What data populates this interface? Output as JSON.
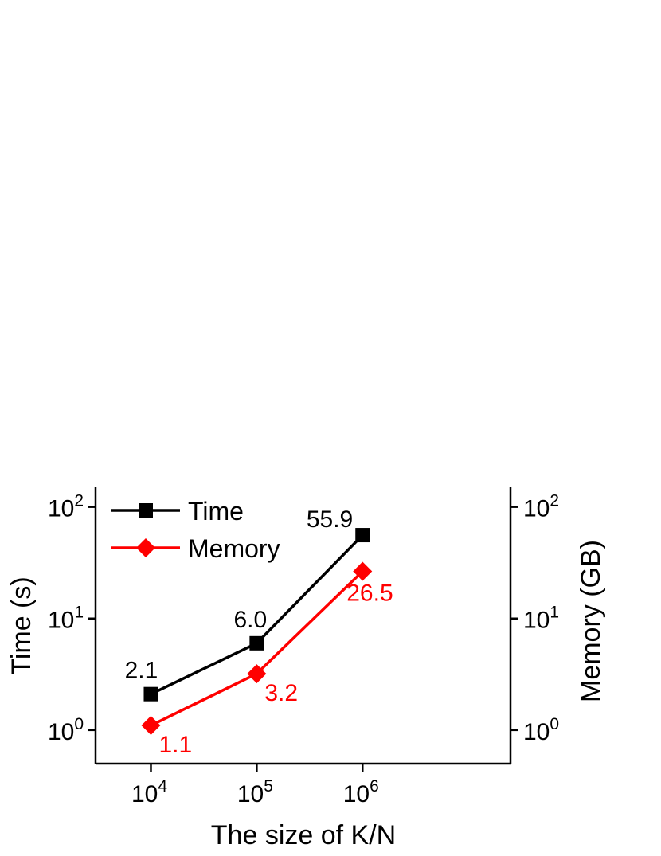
{
  "chart_data": {
    "type": "line",
    "xlabel": "The size of K/N",
    "ylabel": "Time (s)",
    "y2label": "Memory (GB)",
    "xscale": "log",
    "yscale": "log",
    "x": [
      10000,
      100000,
      1000000
    ],
    "x_ticks": [
      {
        "base": "10",
        "exp": "4"
      },
      {
        "base": "10",
        "exp": "5"
      },
      {
        "base": "10",
        "exp": "6"
      }
    ],
    "y_ticks": [
      {
        "base": "10",
        "exp": "0"
      },
      {
        "base": "10",
        "exp": "1"
      },
      {
        "base": "10",
        "exp": "2"
      }
    ],
    "y2_ticks": [
      {
        "base": "10",
        "exp": "0"
      },
      {
        "base": "10",
        "exp": "1"
      },
      {
        "base": "10",
        "exp": "2"
      }
    ],
    "ylim": [
      0.5,
      150
    ],
    "xlim": [
      3000,
      25000000
    ],
    "legend_position": "top-left",
    "grid": false,
    "series": [
      {
        "name": "Time",
        "axis": "left",
        "marker": "square",
        "color": "#000000",
        "values": [
          2.1,
          6.0,
          55.9
        ],
        "labels": [
          "2.1",
          "6.0",
          "55.9"
        ]
      },
      {
        "name": "Memory",
        "axis": "right",
        "marker": "diamond",
        "color": "#ff0000",
        "values": [
          1.1,
          3.2,
          26.5
        ],
        "labels": [
          "1.1",
          "3.2",
          "26.5"
        ]
      }
    ]
  }
}
